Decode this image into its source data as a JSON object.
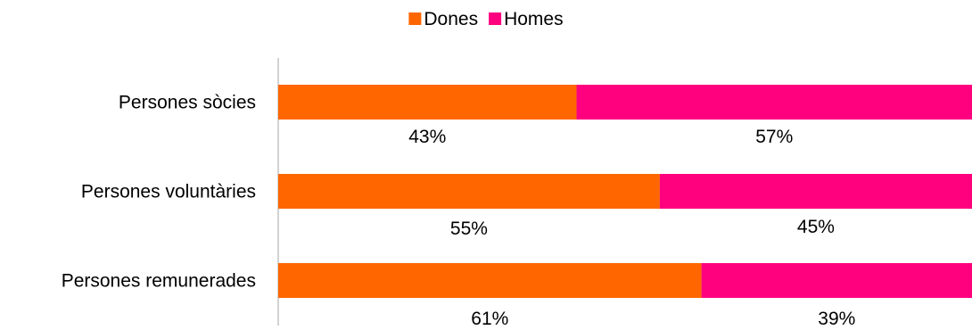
{
  "chart_data": {
    "type": "bar",
    "orientation": "horizontal",
    "stacked": "percent",
    "categories": [
      "Persones sòcies",
      "Persones voluntàries",
      "Persones remunerades"
    ],
    "series": [
      {
        "name": "Dones",
        "values": [
          43,
          55,
          61
        ],
        "labels": [
          "43%",
          "55%",
          "61%"
        ],
        "color": "#ff6600"
      },
      {
        "name": "Homes",
        "values": [
          57,
          45,
          39
        ],
        "labels": [
          "57%",
          "45%",
          "39%"
        ],
        "color": "#ff007f"
      }
    ],
    "xlim": [
      0,
      100
    ],
    "legend_position": "top-center",
    "grid": false
  }
}
